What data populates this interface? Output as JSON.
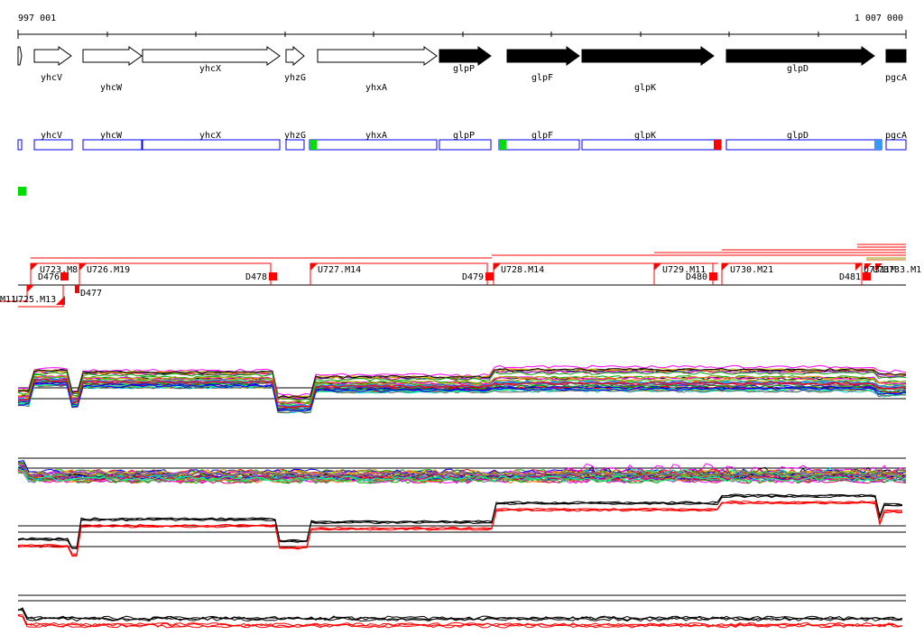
{
  "ruler": {
    "start_label": "997 001",
    "end_label": "1 007 000",
    "start_bp": 997001,
    "end_bp": 1007000
  },
  "genes": [
    {
      "name": "",
      "strand": "+",
      "fill": "none"
    },
    {
      "name": "yhcV",
      "strand": "+",
      "fill": "none"
    },
    {
      "name": "yhcW",
      "strand": "+",
      "fill": "none"
    },
    {
      "name": "yhcX",
      "strand": "+",
      "fill": "none"
    },
    {
      "name": "yhzG",
      "strand": "+",
      "fill": "none"
    },
    {
      "name": "yhxA",
      "strand": "+",
      "fill": "none"
    },
    {
      "name": "glpP",
      "strand": "+",
      "fill": "solid"
    },
    {
      "name": "glpF",
      "strand": "+",
      "fill": "solid"
    },
    {
      "name": "glpK",
      "strand": "+",
      "fill": "solid"
    },
    {
      "name": "glpD",
      "strand": "+",
      "fill": "solid"
    },
    {
      "name": "pgcA",
      "strand": "+",
      "fill": "solid"
    }
  ],
  "feature_track": {
    "labels": [
      "yhcV",
      "yhcW",
      "yhcX",
      "yhzG",
      "yhxA",
      "glpP",
      "glpF",
      "glpK",
      "glpD",
      "pgcA"
    ],
    "outline_color": "#0000ff",
    "markers": [
      {
        "name": "start-marker",
        "color": "#00dd00"
      },
      {
        "name": "start-marker",
        "color": "#00dd00"
      },
      {
        "name": "stop-marker",
        "color": "#ff0000"
      },
      {
        "name": "terminator-marker",
        "color": "#3399ff"
      }
    ]
  },
  "green_marker_color": "#00dd00",
  "transcript_up_labels": [
    "U723.M8",
    "U726.M19",
    "U727.M14",
    "U728.M14",
    "U729.M11",
    "U730.M21",
    "U731.M",
    "U73",
    "U733.M1"
  ],
  "transcript_down_labels": [
    "D476",
    "D477",
    "D478",
    "D479",
    "D480",
    "D481"
  ],
  "transcript_misc_labels": [
    "U725.M13",
    "M11"
  ],
  "colors": {
    "transcript": "#ff0000",
    "accent_profile": "#ff0000",
    "profile_black": "#000000"
  }
}
